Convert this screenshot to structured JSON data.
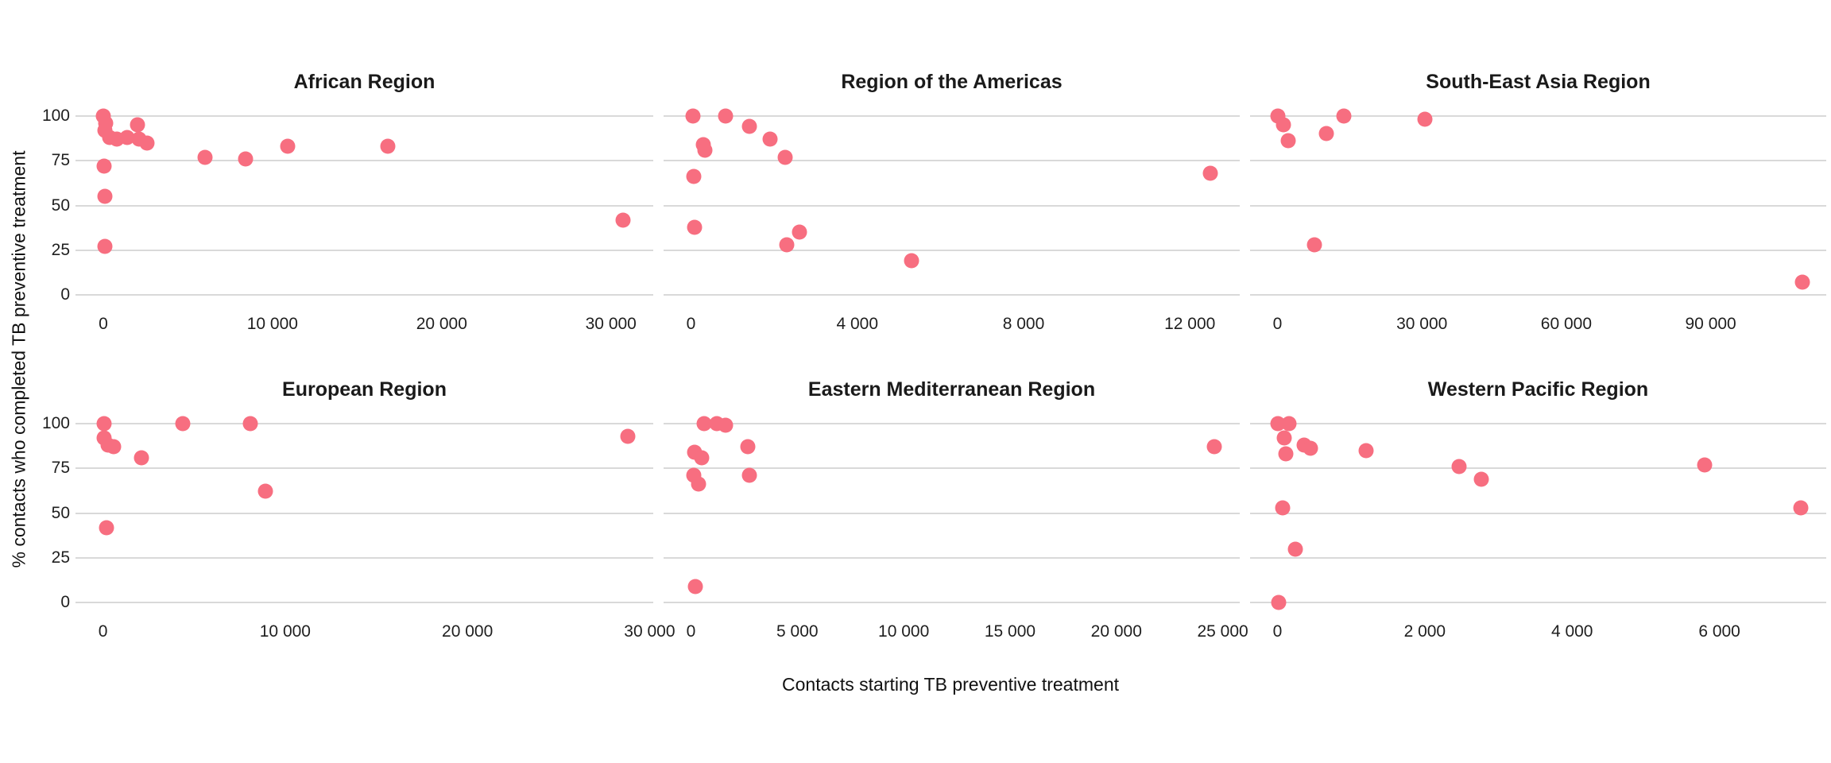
{
  "figure": {
    "x_axis_title": "Contacts starting TB preventive treatment",
    "y_axis_title": "% contacts who completed TB preventive treatment",
    "colors": {
      "dot": "#f76e80",
      "gridline": "#d9d9d9",
      "text": "#1f1f1f"
    },
    "y_ticks": [
      100,
      75,
      50,
      25,
      0
    ],
    "y_tick_labels": [
      "100",
      "75",
      "50",
      "25",
      "0"
    ]
  },
  "chart_data": [
    {
      "type": "scatter",
      "title": "African Region",
      "xlabel": "Contacts starting TB preventive treatment",
      "ylabel": "% contacts who completed TB preventive treatment",
      "x_tick_values": [
        0,
        10000,
        20000,
        30000
      ],
      "x_tick_labels": [
        "0",
        "10 000",
        "20 000",
        "30 000"
      ],
      "xlim": [
        -1640,
        32500
      ],
      "ylim": [
        -6.2,
        106.2
      ],
      "y_ticks": [
        0,
        25,
        50,
        75,
        100
      ],
      "grid": "horizontal-major-only",
      "legend": "none",
      "points": [
        [
          0,
          100
        ],
        [
          150,
          96
        ],
        [
          80,
          92
        ],
        [
          400,
          88
        ],
        [
          800,
          87
        ],
        [
          1400,
          88
        ],
        [
          2000,
          95
        ],
        [
          2100,
          87
        ],
        [
          2600,
          85
        ],
        [
          50,
          72
        ],
        [
          120,
          55
        ],
        [
          80,
          27
        ],
        [
          6000,
          77
        ],
        [
          8400,
          76
        ],
        [
          10900,
          83
        ],
        [
          16800,
          83
        ],
        [
          30700,
          42
        ]
      ]
    },
    {
      "type": "scatter",
      "title": "Region of the Americas",
      "xlabel": "Contacts starting TB preventive treatment",
      "ylabel": "% contacts who completed TB preventive treatment",
      "x_tick_values": [
        0,
        4000,
        8000,
        12000
      ],
      "x_tick_labels": [
        "0",
        "4 000",
        "8 000",
        "12 000"
      ],
      "xlim": [
        -660,
        13200
      ],
      "ylim": [
        -6.2,
        106.2
      ],
      "y_ticks": [
        0,
        25,
        50,
        75,
        100
      ],
      "grid": "horizontal-major-only",
      "legend": "none",
      "points": [
        [
          50,
          100
        ],
        [
          830,
          100
        ],
        [
          1400,
          94
        ],
        [
          1900,
          87
        ],
        [
          2260,
          77
        ],
        [
          300,
          84
        ],
        [
          330,
          81
        ],
        [
          60,
          66
        ],
        [
          80,
          38
        ],
        [
          2300,
          28
        ],
        [
          2600,
          35
        ],
        [
          5300,
          19
        ],
        [
          12500,
          68
        ]
      ]
    },
    {
      "type": "scatter",
      "title": "South-East Asia Region",
      "xlabel": "Contacts starting TB preventive treatment",
      "ylabel": "% contacts who completed TB preventive treatment",
      "x_tick_values": [
        0,
        30000,
        60000,
        90000
      ],
      "x_tick_labels": [
        "0",
        "30 000",
        "60 000",
        "90 000"
      ],
      "xlim": [
        -5700,
        114000
      ],
      "ylim": [
        -6.2,
        106.2
      ],
      "y_ticks": [
        0,
        25,
        50,
        75,
        100
      ],
      "grid": "horizontal-major-only",
      "legend": "none",
      "points": [
        [
          100,
          100
        ],
        [
          1200,
          95
        ],
        [
          2300,
          86
        ],
        [
          10100,
          90
        ],
        [
          13800,
          100
        ],
        [
          30700,
          98
        ],
        [
          7600,
          28
        ],
        [
          109000,
          7
        ]
      ]
    },
    {
      "type": "scatter",
      "title": "European Region",
      "xlabel": "Contacts starting TB preventive treatment",
      "ylabel": "% contacts who completed TB preventive treatment",
      "x_tick_values": [
        0,
        10000,
        20000,
        30000
      ],
      "x_tick_labels": [
        "0",
        "10 000",
        "20 000",
        "30 000"
      ],
      "xlim": [
        -1510,
        30200
      ],
      "ylim": [
        -6.2,
        106.2
      ],
      "y_ticks": [
        0,
        25,
        50,
        75,
        100
      ],
      "grid": "horizontal-major-only",
      "legend": "none",
      "points": [
        [
          60,
          100
        ],
        [
          40,
          92
        ],
        [
          260,
          88
        ],
        [
          600,
          87
        ],
        [
          2100,
          81
        ],
        [
          4400,
          100
        ],
        [
          8100,
          100
        ],
        [
          8900,
          62
        ],
        [
          170,
          42
        ],
        [
          28800,
          93
        ]
      ]
    },
    {
      "type": "scatter",
      "title": "Eastern Mediterranean Region",
      "xlabel": "Contacts starting TB preventive treatment",
      "ylabel": "% contacts who completed TB preventive treatment",
      "x_tick_values": [
        0,
        5000,
        10000,
        15000,
        20000,
        25000
      ],
      "x_tick_labels": [
        "0",
        "5 000",
        "10 000",
        "15 000",
        "20 000",
        "25 000"
      ],
      "xlim": [
        -1290,
        25800
      ],
      "ylim": [
        -6.2,
        106.2
      ],
      "y_ticks": [
        0,
        25,
        50,
        75,
        100
      ],
      "grid": "horizontal-major-only",
      "legend": "none",
      "points": [
        [
          620,
          100
        ],
        [
          1220,
          100
        ],
        [
          1640,
          99
        ],
        [
          2670,
          87
        ],
        [
          2730,
          71
        ],
        [
          180,
          84
        ],
        [
          490,
          81
        ],
        [
          130,
          71
        ],
        [
          360,
          66
        ],
        [
          220,
          9
        ],
        [
          24600,
          87
        ]
      ]
    },
    {
      "type": "scatter",
      "title": "Western Pacific Region",
      "xlabel": "Contacts starting TB preventive treatment",
      "ylabel": "% contacts who completed TB preventive treatment",
      "x_tick_values": [
        0,
        2000,
        4000,
        6000
      ],
      "x_tick_labels": [
        "0",
        "2 000",
        "4 000",
        "6 000"
      ],
      "xlim": [
        -372,
        7450
      ],
      "ylim": [
        -6.2,
        106.2
      ],
      "y_ticks": [
        0,
        25,
        50,
        75,
        100
      ],
      "grid": "horizontal-major-only",
      "legend": "none",
      "points": [
        [
          10,
          100
        ],
        [
          155,
          100
        ],
        [
          90,
          92
        ],
        [
          360,
          88
        ],
        [
          450,
          86
        ],
        [
          110,
          83
        ],
        [
          1200,
          85
        ],
        [
          2470,
          76
        ],
        [
          2770,
          69
        ],
        [
          5800,
          77
        ],
        [
          65,
          53
        ],
        [
          7100,
          53
        ],
        [
          240,
          30
        ],
        [
          20,
          0
        ]
      ]
    }
  ]
}
